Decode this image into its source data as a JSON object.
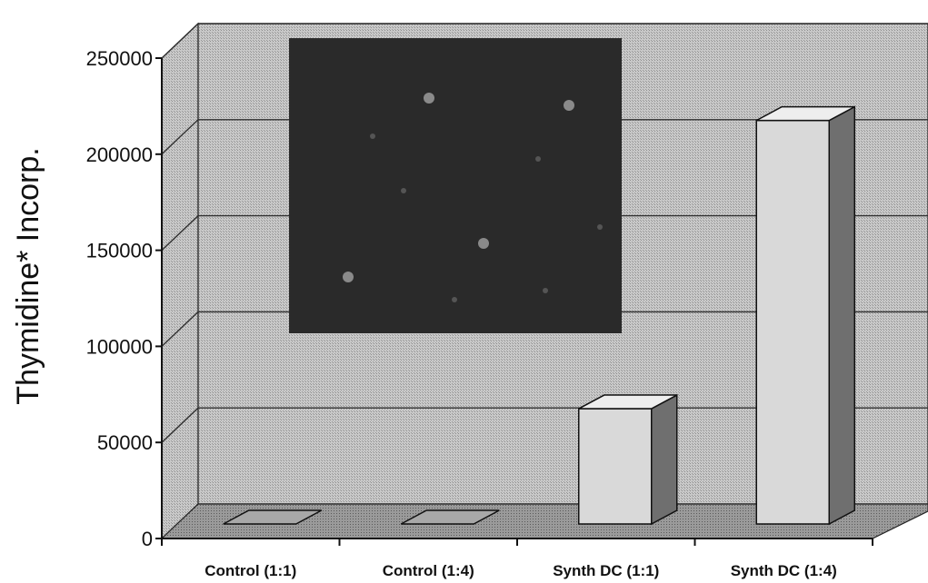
{
  "chart_data": {
    "type": "bar",
    "style": "3d",
    "categories": [
      "Control (1:1)",
      "Control (1:4)",
      "Synth DC (1:1)",
      "Synth DC (1:4)"
    ],
    "values": [
      0,
      0,
      60000,
      210000
    ],
    "ylabel": "Thymidine* Incorp.",
    "xlabel": "",
    "ylim": [
      0,
      250000
    ],
    "yticks": [
      0,
      50000,
      100000,
      150000,
      200000,
      250000
    ],
    "ytick_labels": [
      "0",
      "50000",
      "100000",
      "150000",
      "200000",
      "250000"
    ],
    "grid": true,
    "legend": "none",
    "inset_image": "dark micrograph with faint bright spots",
    "colors": {
      "background": "#bdbdbd",
      "floor": "#8a8a8a",
      "bar_front": "#d9d9d9",
      "bar_top": "#eeeeee",
      "bar_side": "#6f6f6f",
      "gridline": "#303030",
      "inset": "#2a2a2a"
    }
  }
}
